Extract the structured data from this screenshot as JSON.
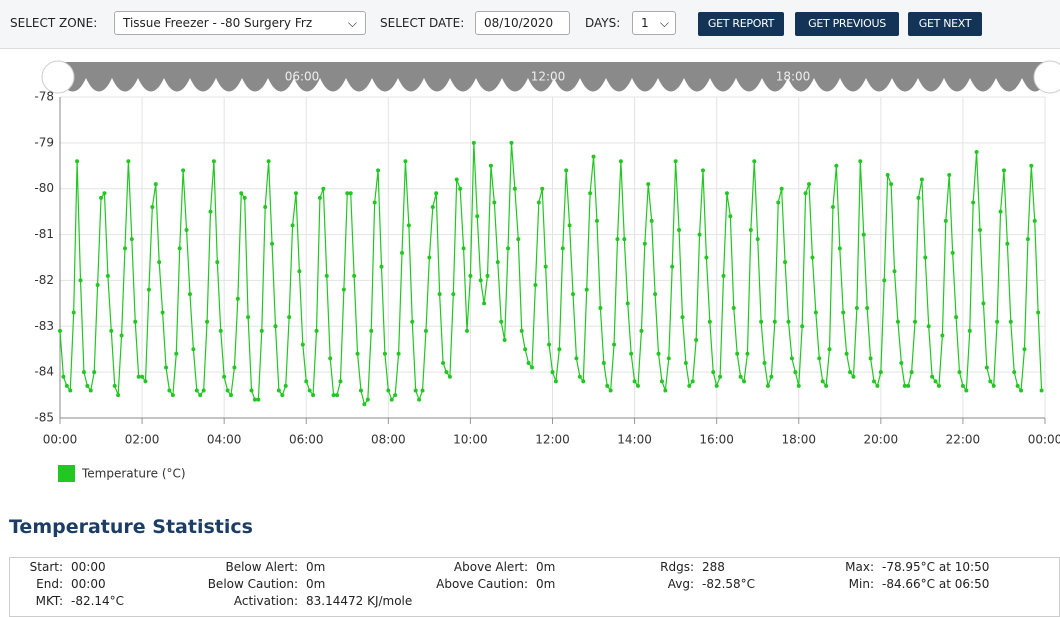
{
  "toolbar": {
    "zone_label": "SELECT ZONE:",
    "zone_value": "Tissue Freezer - -80 Surgery Frz",
    "date_label": "SELECT DATE:",
    "date_value": "08/10/2020",
    "days_label": "DAYS:",
    "days_value": "1",
    "buttons": [
      "GET REPORT",
      "GET PREVIOUS",
      "GET NEXT"
    ]
  },
  "navigator_labels": [
    "06:00",
    "12:00",
    "18:00"
  ],
  "chart_data": {
    "type": "line",
    "xlim": [
      0,
      288
    ],
    "xticks": [
      {
        "value": 0,
        "label": "00:00"
      },
      {
        "value": 24,
        "label": "02:00"
      },
      {
        "value": 48,
        "label": "04:00"
      },
      {
        "value": 72,
        "label": "06:00"
      },
      {
        "value": 96,
        "label": "08:00"
      },
      {
        "value": 120,
        "label": "10:00"
      },
      {
        "value": 144,
        "label": "12:00"
      },
      {
        "value": 168,
        "label": "14:00"
      },
      {
        "value": 192,
        "label": "16:00"
      },
      {
        "value": 216,
        "label": "18:00"
      },
      {
        "value": 240,
        "label": "20:00"
      },
      {
        "value": 264,
        "label": "22:00"
      },
      {
        "value": 288,
        "label": "00:00"
      }
    ],
    "ylim": [
      -85,
      -78
    ],
    "yticks": [
      -85,
      -84,
      -83,
      -82,
      -81,
      -80,
      -79,
      -78
    ],
    "grid": true,
    "series": [
      {
        "name": "Temperature (°C)",
        "color": "#22c722",
        "values": [
          -83.1,
          -84.1,
          -84.3,
          -84.4,
          -82.7,
          -79.4,
          -82.0,
          -84.0,
          -84.3,
          -84.4,
          -84.0,
          -82.1,
          -80.2,
          -80.1,
          -81.9,
          -83.1,
          -84.3,
          -84.5,
          -83.2,
          -81.3,
          -79.4,
          -81.1,
          -82.9,
          -84.1,
          -84.1,
          -84.2,
          -82.2,
          -80.4,
          -79.9,
          -81.6,
          -82.7,
          -83.9,
          -84.4,
          -84.5,
          -83.6,
          -81.3,
          -79.6,
          -80.9,
          -82.3,
          -83.5,
          -84.4,
          -84.5,
          -84.4,
          -82.9,
          -80.5,
          -79.4,
          -81.6,
          -83.1,
          -84.1,
          -84.4,
          -84.5,
          -83.9,
          -82.4,
          -80.1,
          -80.2,
          -82.8,
          -84.4,
          -84.6,
          -84.6,
          -83.1,
          -80.4,
          -79.4,
          -81.2,
          -83.0,
          -84.4,
          -84.5,
          -84.3,
          -82.8,
          -80.8,
          -80.1,
          -81.8,
          -83.4,
          -84.2,
          -84.4,
          -84.5,
          -83.1,
          -80.2,
          -80.0,
          -81.9,
          -83.7,
          -84.5,
          -84.5,
          -84.2,
          -82.2,
          -80.1,
          -80.1,
          -81.9,
          -83.6,
          -84.4,
          -84.7,
          -84.6,
          -83.1,
          -80.3,
          -79.6,
          -81.7,
          -83.6,
          -84.4,
          -84.6,
          -84.5,
          -83.6,
          -81.4,
          -79.4,
          -80.8,
          -82.9,
          -84.4,
          -84.6,
          -84.4,
          -83.1,
          -81.5,
          -80.4,
          -80.1,
          -82.3,
          -83.8,
          -84.0,
          -84.1,
          -82.3,
          -79.8,
          -80.0,
          -81.3,
          -83.1,
          -81.9,
          -79.0,
          -80.6,
          -82.0,
          -82.5,
          -81.9,
          -79.5,
          -80.3,
          -81.6,
          -82.9,
          -83.3,
          -81.3,
          -79.0,
          -80.0,
          -81.1,
          -83.1,
          -83.5,
          -83.8,
          -83.9,
          -82.1,
          -80.3,
          -80.0,
          -81.7,
          -83.4,
          -84.0,
          -84.2,
          -83.5,
          -81.3,
          -79.6,
          -80.8,
          -82.3,
          -83.7,
          -84.1,
          -84.2,
          -82.2,
          -80.1,
          -79.3,
          -80.7,
          -82.6,
          -83.8,
          -84.3,
          -84.4,
          -83.4,
          -81.1,
          -79.4,
          -81.1,
          -82.5,
          -83.6,
          -84.2,
          -84.3,
          -83.1,
          -81.2,
          -79.9,
          -80.7,
          -82.3,
          -83.6,
          -84.2,
          -84.4,
          -83.7,
          -81.7,
          -79.4,
          -80.9,
          -82.8,
          -83.8,
          -84.3,
          -84.2,
          -83.3,
          -81.0,
          -79.6,
          -81.5,
          -82.9,
          -84.0,
          -84.3,
          -84.1,
          -81.9,
          -80.1,
          -80.6,
          -82.6,
          -83.6,
          -84.1,
          -84.2,
          -83.6,
          -80.9,
          -79.4,
          -81.1,
          -82.9,
          -83.8,
          -84.3,
          -84.1,
          -82.9,
          -80.3,
          -80.0,
          -81.6,
          -82.9,
          -83.7,
          -84.0,
          -84.3,
          -83.0,
          -80.1,
          -79.9,
          -81.5,
          -82.7,
          -83.7,
          -84.2,
          -84.3,
          -83.5,
          -80.4,
          -79.5,
          -81.3,
          -82.7,
          -83.6,
          -84.0,
          -84.1,
          -82.6,
          -79.4,
          -81.0,
          -82.6,
          -83.7,
          -84.2,
          -84.3,
          -84.0,
          -82.0,
          -79.7,
          -79.9,
          -81.8,
          -82.9,
          -83.8,
          -84.3,
          -84.3,
          -84.0,
          -82.9,
          -80.2,
          -79.8,
          -81.5,
          -83.0,
          -84.1,
          -84.2,
          -84.3,
          -83.2,
          -80.7,
          -79.7,
          -81.4,
          -82.8,
          -84.0,
          -84.3,
          -84.4,
          -83.1,
          -80.3,
          -79.2,
          -80.9,
          -82.5,
          -83.9,
          -84.2,
          -84.3,
          -82.9,
          -80.5,
          -79.6,
          -81.2,
          -82.9,
          -84.0,
          -84.3,
          -84.4,
          -83.5,
          -81.1,
          -79.5,
          -80.7,
          -82.7,
          -84.4
        ]
      }
    ]
  },
  "stats": {
    "title": "Temperature Statistics",
    "columns": [
      [
        {
          "label": "Start:",
          "value": "00:00"
        },
        {
          "label": "End:",
          "value": "00:00"
        },
        {
          "label": "MKT:",
          "value": "-82.14°C"
        }
      ],
      [
        {
          "label": "Below Alert:",
          "value": "0m"
        },
        {
          "label": "Below Caution:",
          "value": "0m"
        },
        {
          "label": "Activation:",
          "value": "83.14472 KJ/mole"
        }
      ],
      [
        {
          "label": "Above Alert:",
          "value": "0m"
        },
        {
          "label": "Above Caution:",
          "value": "0m"
        }
      ],
      [
        {
          "label": "Rdgs:",
          "value": "288"
        },
        {
          "label": "Avg:",
          "value": "-82.58°C"
        }
      ],
      [
        {
          "label": "Max:",
          "value": "-78.95°C at 10:50"
        },
        {
          "label": "Min:",
          "value": "-84.66°C at 06:50"
        }
      ]
    ]
  }
}
